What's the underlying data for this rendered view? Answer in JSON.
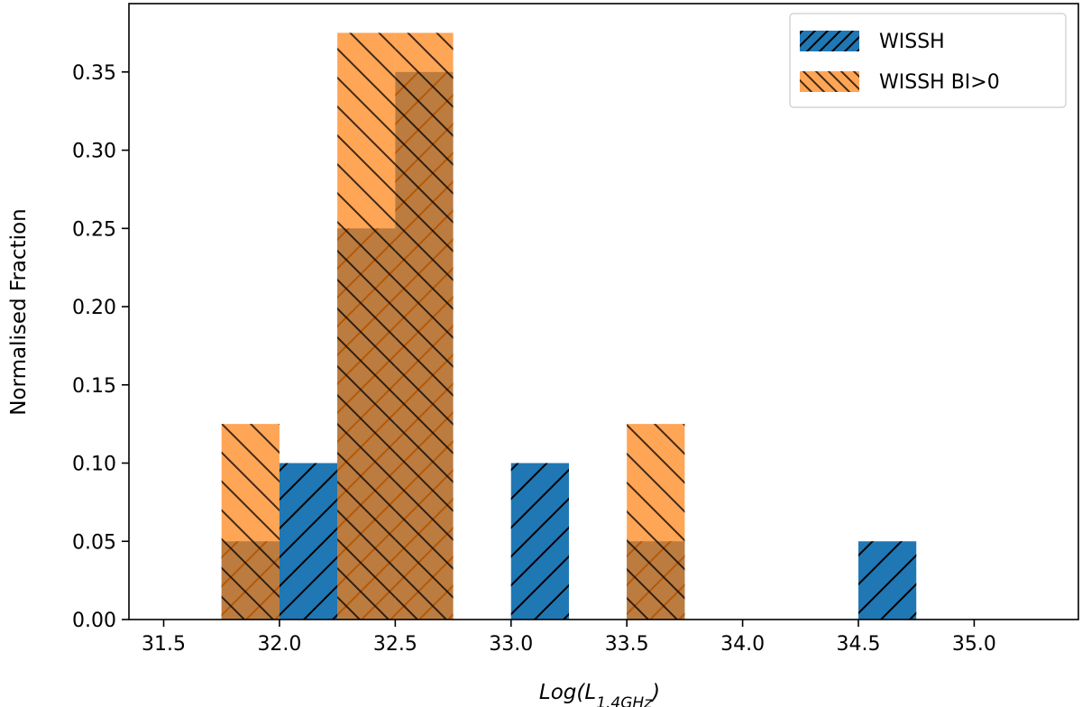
{
  "chart_data": {
    "type": "bar",
    "title": "",
    "xlabel": "Log(L",
    "xlabel_sub": "1.4GHz",
    "xlabel_close": ")",
    "ylabel": "Normalised Fraction",
    "xlim": [
      31.35,
      35.45
    ],
    "ylim": [
      0.0,
      0.3937
    ],
    "xticks": [
      31.5,
      32.0,
      32.5,
      33.0,
      33.5,
      34.0,
      34.5,
      35.0
    ],
    "xtick_labels": [
      "31.5",
      "32.0",
      "32.5",
      "33.0",
      "33.5",
      "34.0",
      "34.5",
      "35.0"
    ],
    "yticks": [
      0.0,
      0.05,
      0.1,
      0.15,
      0.2,
      0.25,
      0.3,
      0.35
    ],
    "ytick_labels": [
      "0.00",
      "0.05",
      "0.10",
      "0.15",
      "0.20",
      "0.25",
      "0.30",
      "0.35"
    ],
    "bin_width": 0.25,
    "grid": false,
    "legend_position": "top-right",
    "series": [
      {
        "name": "WISSH",
        "color": "#1f77b4",
        "hatch": "forward",
        "bins": [
          {
            "x0": 31.75,
            "value": 0.05
          },
          {
            "x0": 32.0,
            "value": 0.1
          },
          {
            "x0": 32.25,
            "value": 0.25
          },
          {
            "x0": 32.5,
            "value": 0.35
          },
          {
            "x0": 33.0,
            "value": 0.1
          },
          {
            "x0": 33.5,
            "value": 0.05
          },
          {
            "x0": 34.5,
            "value": 0.05
          }
        ]
      },
      {
        "name": "WISSH BI>0",
        "color": "#ff7f0e",
        "hatch": "backward",
        "bins": [
          {
            "x0": 31.75,
            "value": 0.125
          },
          {
            "x0": 32.25,
            "value": 0.375
          },
          {
            "x0": 32.5,
            "value": 0.375
          },
          {
            "x0": 33.5,
            "value": 0.125
          }
        ]
      }
    ]
  }
}
